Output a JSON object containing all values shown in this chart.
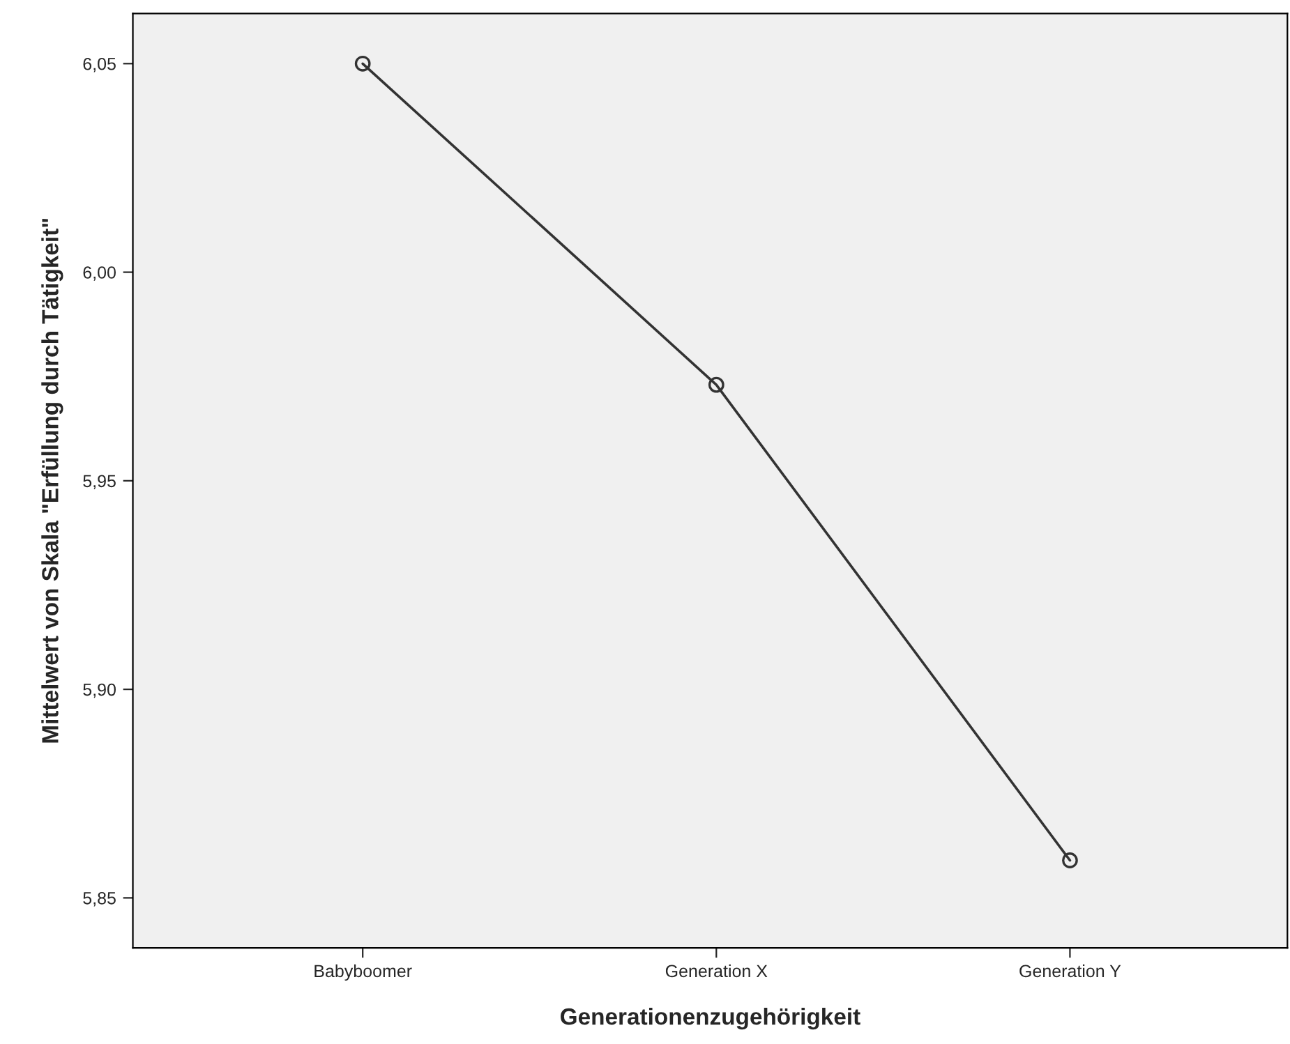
{
  "chart_data": {
    "type": "line",
    "xlabel": "Generationenzugehörigkeit",
    "ylabel": "Mittelwert von Skala \"Erfüllung durch Tätigkeit\"",
    "categories": [
      "Babyboomer",
      "Generation X",
      "Generation Y"
    ],
    "series": [
      {
        "color": "#333333",
        "values": [
          6.05,
          5.973,
          5.859
        ]
      }
    ],
    "ylim": [
      5.838,
      6.062
    ],
    "yticks": [
      {
        "value": 5.85,
        "label": "5,85"
      },
      {
        "value": 5.9,
        "label": "5,90"
      },
      {
        "value": 5.95,
        "label": "5,95"
      },
      {
        "value": 6.0,
        "label": "6,00"
      },
      {
        "value": 6.05,
        "label": "6,05"
      }
    ],
    "marker": "circle",
    "line_style": "solid",
    "grid": false,
    "legend": false
  }
}
